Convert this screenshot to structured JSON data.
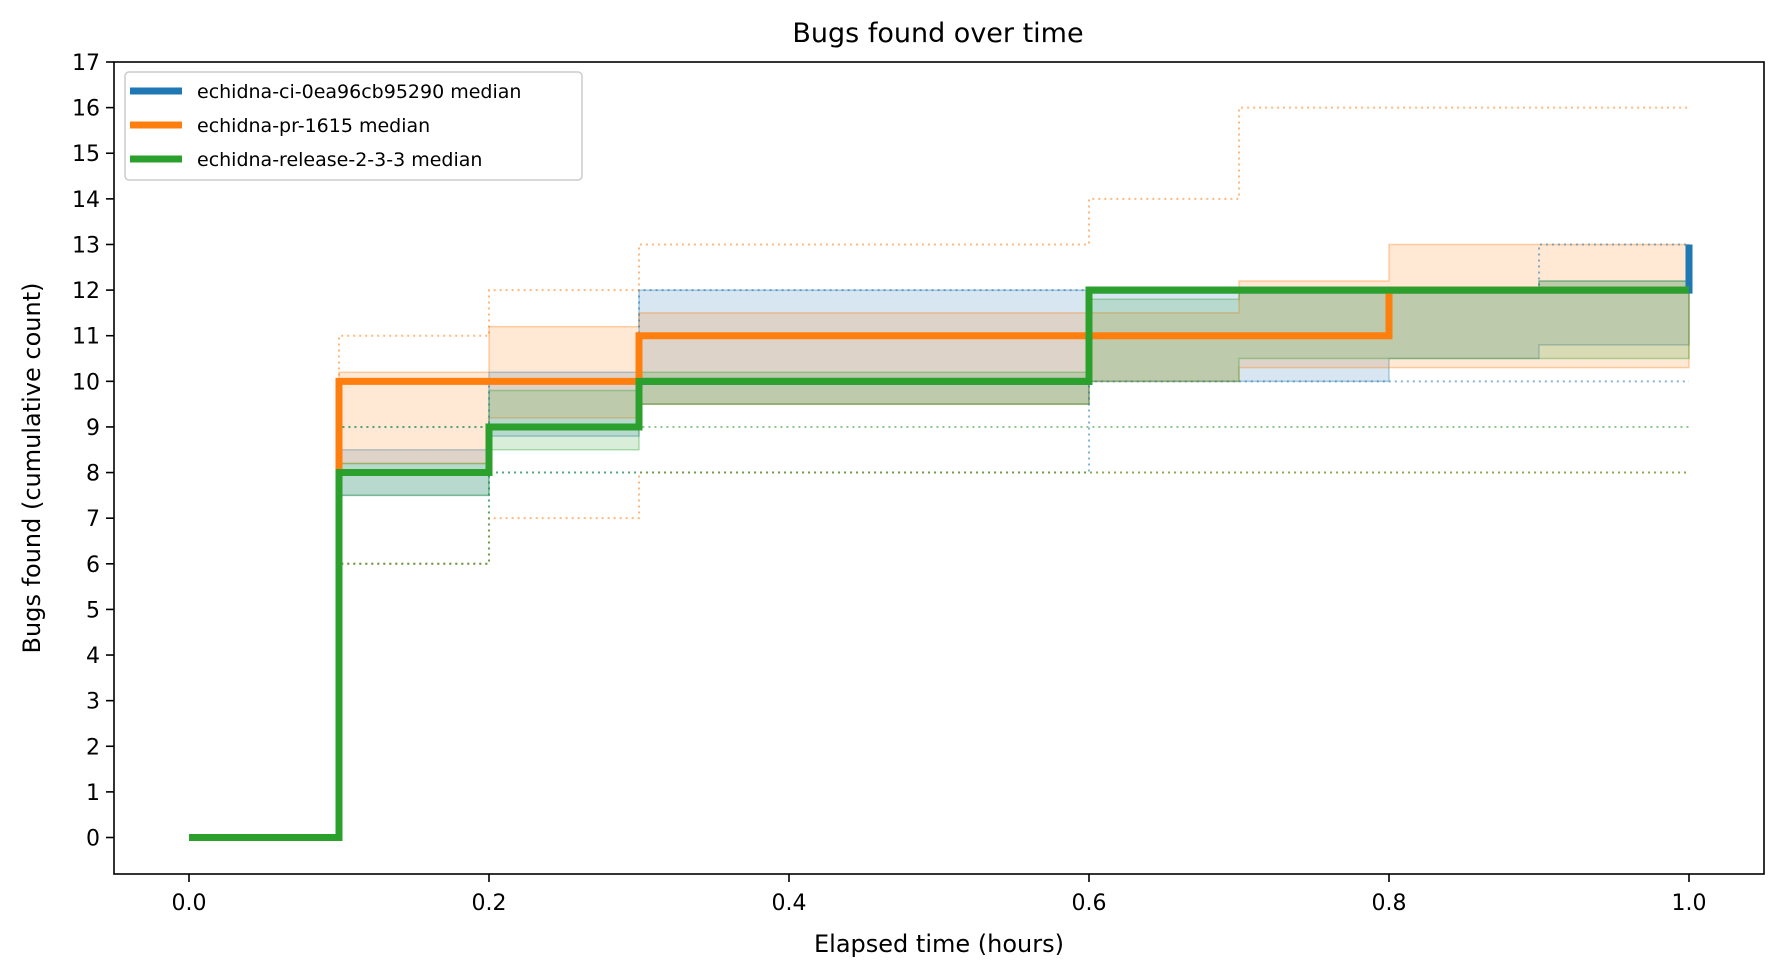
{
  "chart_data": {
    "type": "line",
    "title": "Bugs found over time",
    "xlabel": "Elapsed time (hours)",
    "ylabel": "Bugs found (cumulative count)",
    "xlim": [
      -0.05,
      1.05
    ],
    "ylim": [
      -0.8,
      17
    ],
    "x_ticks": [
      0.0,
      0.2,
      0.4,
      0.6,
      0.8,
      1.0
    ],
    "x_tick_labels": [
      "0.0",
      "0.2",
      "0.4",
      "0.6",
      "0.8",
      "1.0"
    ],
    "y_ticks": [
      0,
      1,
      2,
      3,
      4,
      5,
      6,
      7,
      8,
      9,
      10,
      11,
      12,
      13,
      14,
      15,
      16,
      17
    ],
    "y_tick_labels": [
      "0",
      "1",
      "2",
      "3",
      "4",
      "5",
      "6",
      "7",
      "8",
      "9",
      "10",
      "11",
      "12",
      "13",
      "14",
      "15",
      "16",
      "17"
    ],
    "grid": false,
    "legend_position": "top-left",
    "step": "post",
    "series": [
      {
        "name": "echidna-ci-0ea96cb95290 median",
        "color": "#1f77b4",
        "x": [
          0.0,
          0.1,
          0.2,
          0.3,
          0.4,
          0.5,
          0.6,
          0.7,
          0.8,
          0.9,
          1.0
        ],
        "median": [
          0,
          8,
          9,
          10,
          10,
          10,
          12,
          12,
          12,
          12,
          13
        ],
        "band_low": [
          0,
          7.5,
          8.8,
          9.5,
          9.5,
          9.5,
          10.0,
          10.0,
          10.5,
          10.8,
          10.8
        ],
        "band_high": [
          0,
          8.5,
          10.2,
          12.0,
          12.0,
          12.0,
          12.0,
          12.0,
          12.0,
          12.2,
          12.5
        ],
        "min": [
          0,
          6,
          8,
          8,
          8,
          8,
          10,
          10,
          10,
          10,
          10
        ],
        "max": [
          0,
          9,
          10,
          12,
          12,
          12,
          12,
          12,
          12,
          13,
          13
        ]
      },
      {
        "name": "echidna-pr-1615 median",
        "color": "#ff7f0e",
        "x": [
          0.0,
          0.1,
          0.2,
          0.3,
          0.4,
          0.5,
          0.6,
          0.7,
          0.8,
          0.9,
          1.0
        ],
        "median": [
          0,
          10,
          10,
          11,
          11,
          11,
          11,
          11,
          12,
          12,
          12
        ],
        "band_low": [
          0,
          8.2,
          9.2,
          9.5,
          9.5,
          9.5,
          10.0,
          10.3,
          10.3,
          10.3,
          11.0
        ],
        "band_high": [
          0,
          10.2,
          11.2,
          11.5,
          11.5,
          11.5,
          11.5,
          12.2,
          13.0,
          13.0,
          13.0
        ],
        "min": [
          0,
          6,
          7,
          8,
          8,
          8,
          8,
          8,
          8,
          8,
          8
        ],
        "max": [
          0,
          11,
          12,
          13,
          13,
          13,
          14,
          16,
          16,
          16,
          16
        ]
      },
      {
        "name": "echidna-release-2-3-3 median",
        "color": "#2ca02c",
        "x": [
          0.0,
          0.1,
          0.2,
          0.3,
          0.4,
          0.5,
          0.6,
          0.7,
          0.8,
          0.9,
          1.0
        ],
        "median": [
          0,
          8,
          9,
          10,
          10,
          10,
          12,
          12,
          12,
          12,
          12
        ],
        "band_low": [
          0,
          7.5,
          8.5,
          9.5,
          9.5,
          9.5,
          10.0,
          10.5,
          10.5,
          10.5,
          10.5
        ],
        "band_high": [
          0,
          8.2,
          9.8,
          10.2,
          10.2,
          10.2,
          11.8,
          12.0,
          12.0,
          12.2,
          12.2
        ],
        "min": [
          0,
          6,
          8,
          8,
          8,
          8,
          8,
          8,
          8,
          8,
          8
        ],
        "max": [
          0,
          9,
          9,
          9,
          9,
          9,
          9,
          9,
          9,
          9,
          9
        ]
      }
    ]
  }
}
